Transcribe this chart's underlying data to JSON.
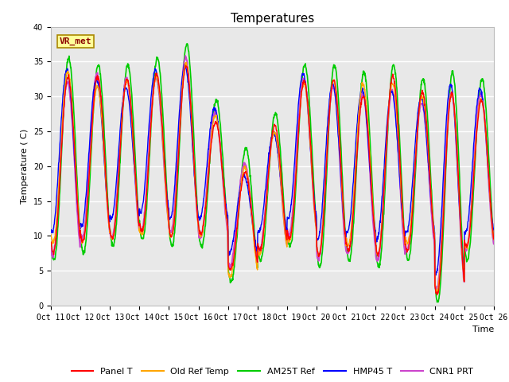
{
  "title": "Temperatures",
  "xlabel": "Time",
  "ylabel": "Temperature (C)",
  "ylim": [
    0,
    40
  ],
  "background_color": "#e8e8e8",
  "figure_bg": "#ffffff",
  "x_tick_labels": [
    "Oct 11",
    "Oct 12",
    "Oct 13",
    "Oct 14",
    "Oct 15",
    "Oct 16",
    "Oct 17",
    "Oct 18",
    "Oct 19",
    "Oct 20",
    "Oct 21",
    "Oct 22",
    "Oct 23",
    "Oct 24",
    "Oct 25",
    "Oct 26"
  ],
  "series": {
    "Panel T": {
      "color": "#ff0000",
      "linewidth": 1.0
    },
    "Old Ref Temp": {
      "color": "#ffa500",
      "linewidth": 1.0
    },
    "AM25T Ref": {
      "color": "#00cc00",
      "linewidth": 1.2
    },
    "HMP45 T": {
      "color": "#0000ff",
      "linewidth": 1.0
    },
    "CNR1 PRT": {
      "color": "#cc44cc",
      "linewidth": 1.4
    }
  },
  "annotation_text": "VR_met",
  "title_fontsize": 11,
  "axis_label_fontsize": 8,
  "tick_fontsize": 7,
  "legend_fontsize": 8,
  "grid_color": "#ffffff",
  "grid_linewidth": 1.0,
  "days": 15,
  "day_peaks_base": [
    33,
    32,
    32,
    33,
    35,
    27,
    20,
    25,
    32,
    32,
    31,
    32,
    30,
    31,
    30
  ],
  "night_mins_base": [
    8,
    9,
    10,
    11,
    10,
    10,
    5,
    8,
    10,
    7,
    8,
    7,
    8,
    2,
    8
  ]
}
